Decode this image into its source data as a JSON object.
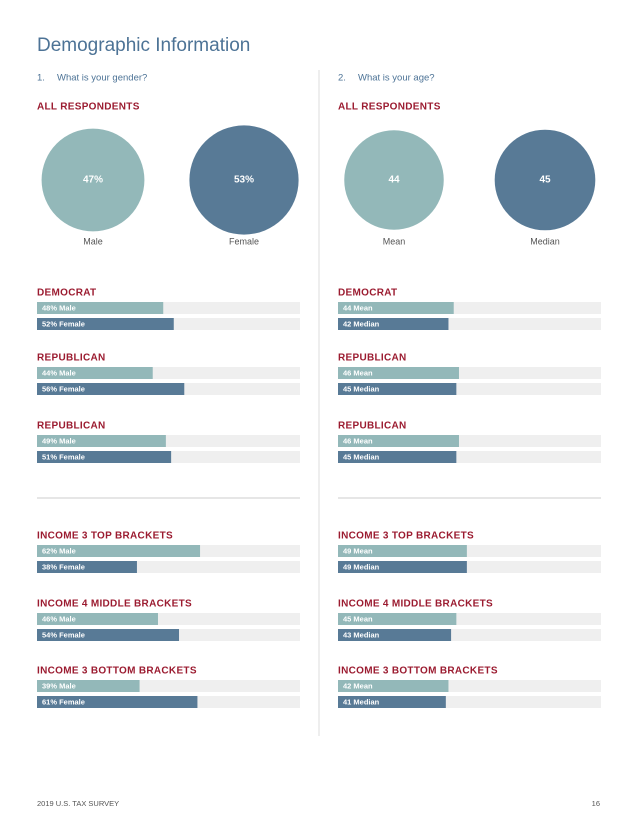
{
  "title": "Demographic Information",
  "footer": {
    "left": "2019 U.S. TAX SURVEY",
    "page": "16"
  },
  "sections": [
    {
      "number": "1.",
      "question": "What is your gender?",
      "xlim": [
        0,
        100
      ],
      "overall": {
        "heading": "ALL RESPONDENTS",
        "circles": [
          {
            "label": "Male",
            "value": 47,
            "value_label": "47%"
          },
          {
            "label": "Female",
            "value": 53,
            "value_label": "53%"
          }
        ]
      },
      "groups": [
        {
          "heading": "DEMOCRAT",
          "bars": [
            {
              "label": "48% Male",
              "value": 48
            },
            {
              "label": "52% Female",
              "value": 52
            }
          ]
        },
        {
          "heading": "REPUBLICAN",
          "bars": [
            {
              "label": "44% Male",
              "value": 44
            },
            {
              "label": "56% Female",
              "value": 56
            }
          ]
        },
        {
          "heading": "REPUBLICAN",
          "bars": [
            {
              "label": "49% Male",
              "value": 49
            },
            {
              "label": "51% Female",
              "value": 51
            }
          ]
        },
        {
          "heading": "INCOME 3 TOP BRACKETS",
          "bars": [
            {
              "label": "62% Male",
              "value": 62
            },
            {
              "label": "38% Female",
              "value": 38
            }
          ]
        },
        {
          "heading": "INCOME 4 MIDDLE BRACKETS",
          "bars": [
            {
              "label": "46% Male",
              "value": 46
            },
            {
              "label": "54% Female",
              "value": 54
            }
          ]
        },
        {
          "heading": "INCOME 3 BOTTOM BRACKETS",
          "bars": [
            {
              "label": "39% Male",
              "value": 39
            },
            {
              "label": "61% Female",
              "value": 61
            }
          ]
        }
      ]
    },
    {
      "number": "2.",
      "question": "What is your age?",
      "xlim": [
        0,
        100
      ],
      "overall": {
        "heading": "ALL RESPONDENTS",
        "circles": [
          {
            "label": "Mean",
            "value": 44
          },
          {
            "label": "Median",
            "value": 45
          }
        ]
      },
      "groups": [
        {
          "heading": "DEMOCRAT",
          "bars": [
            {
              "label": "44 Mean",
              "value": 44
            },
            {
              "label": "42 Median",
              "value": 42
            }
          ]
        },
        {
          "heading": "REPUBLICAN",
          "bars": [
            {
              "label": "46 Mean",
              "value": 46
            },
            {
              "label": "45 Median",
              "value": 45
            }
          ]
        },
        {
          "heading": "REPUBLICAN",
          "bars": [
            {
              "label": "46 Mean",
              "value": 46
            },
            {
              "label": "45 Median",
              "value": 45
            }
          ]
        },
        {
          "heading": "INCOME 3 TOP BRACKETS",
          "bars": [
            {
              "label": "49 Mean",
              "value": 49
            },
            {
              "label": "49 Median",
              "value": 49
            }
          ]
        },
        {
          "heading": "INCOME 4 MIDDLE BRACKETS",
          "bars": [
            {
              "label": "45 Mean",
              "value": 45
            },
            {
              "label": "43 Median",
              "value": 43
            }
          ]
        },
        {
          "heading": "INCOME 3 BOTTOM BRACKETS",
          "bars": [
            {
              "label": "42 Mean",
              "value": 42
            },
            {
              "label": "41 Median",
              "value": 41
            }
          ]
        }
      ]
    }
  ]
}
